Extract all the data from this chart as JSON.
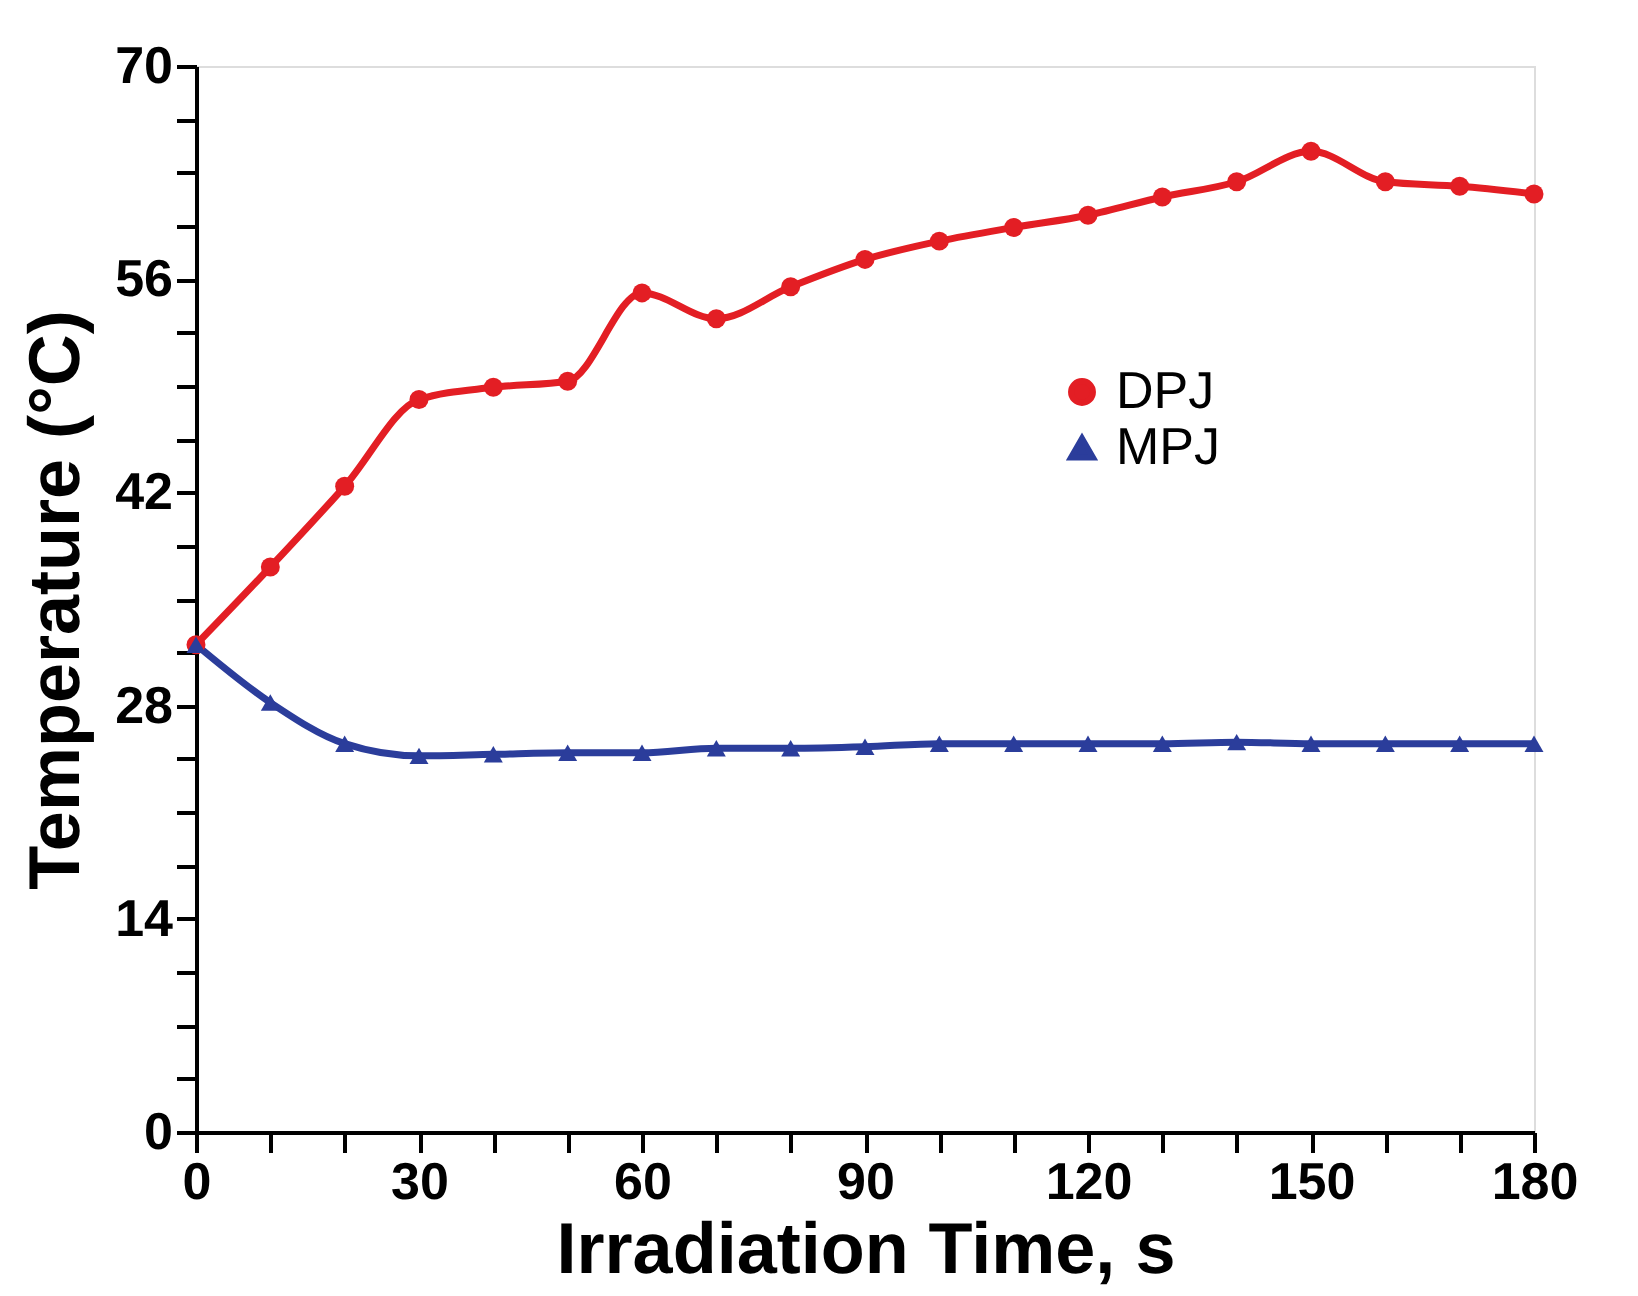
{
  "chart_data": {
    "type": "line",
    "xlabel": "Irradiation Time, s",
    "ylabel": "Temperature (°C)",
    "x": [
      0,
      10,
      20,
      30,
      40,
      50,
      60,
      70,
      80,
      90,
      100,
      110,
      120,
      130,
      140,
      150,
      160,
      170,
      180
    ],
    "series": [
      {
        "name": "DPJ",
        "color": "#e31e24",
        "marker": "circle",
        "values": [
          32,
          37.1,
          42.4,
          48.1,
          48.9,
          49.3,
          55.1,
          53.4,
          55.5,
          57.3,
          58.5,
          59.4,
          60.2,
          61.4,
          62.4,
          64.4,
          62.4,
          62.1,
          61.6
        ]
      },
      {
        "name": "MPJ",
        "color": "#2b3d9b",
        "marker": "triangle",
        "values": [
          32,
          28.2,
          25.5,
          24.7,
          24.8,
          24.9,
          24.9,
          25.2,
          25.2,
          25.3,
          25.5,
          25.5,
          25.5,
          25.5,
          25.6,
          25.5,
          25.5,
          25.5,
          25.5
        ]
      }
    ],
    "xlim": [
      0,
      180
    ],
    "xticks": [
      0,
      {
        "value": 10,
        "label": null
      },
      {
        "value": 20,
        "label": null
      },
      30,
      {
        "value": 40,
        "label": null
      },
      {
        "value": 50,
        "label": null
      },
      60,
      {
        "value": 70,
        "label": null
      },
      {
        "value": 80,
        "label": null
      },
      90,
      {
        "value": 100,
        "label": null
      },
      {
        "value": 110,
        "label": null
      },
      120,
      {
        "value": 130,
        "label": null
      },
      {
        "value": 140,
        "label": null
      },
      150,
      {
        "value": 160,
        "label": null
      },
      {
        "value": 170,
        "label": null
      },
      180
    ],
    "ylim": [
      0,
      70
    ],
    "yticks": [
      0,
      {
        "value": 3.5,
        "label": null
      },
      {
        "value": 7,
        "label": null
      },
      {
        "value": 10.5,
        "label": null
      },
      14,
      {
        "value": 17.5,
        "label": null
      },
      {
        "value": 21,
        "label": null
      },
      {
        "value": 24.5,
        "label": null
      },
      28,
      {
        "value": 31.5,
        "label": null
      },
      {
        "value": 35,
        "label": null
      },
      {
        "value": 38.5,
        "label": null
      },
      42,
      {
        "value": 45.5,
        "label": null
      },
      {
        "value": 49,
        "label": null
      },
      {
        "value": 52.5,
        "label": null
      },
      56,
      {
        "value": 59.5,
        "label": null
      },
      {
        "value": 63,
        "label": null
      },
      {
        "value": 66.5,
        "label": null
      },
      70
    ],
    "grid": false,
    "legend": "right",
    "line_style": "solid"
  }
}
